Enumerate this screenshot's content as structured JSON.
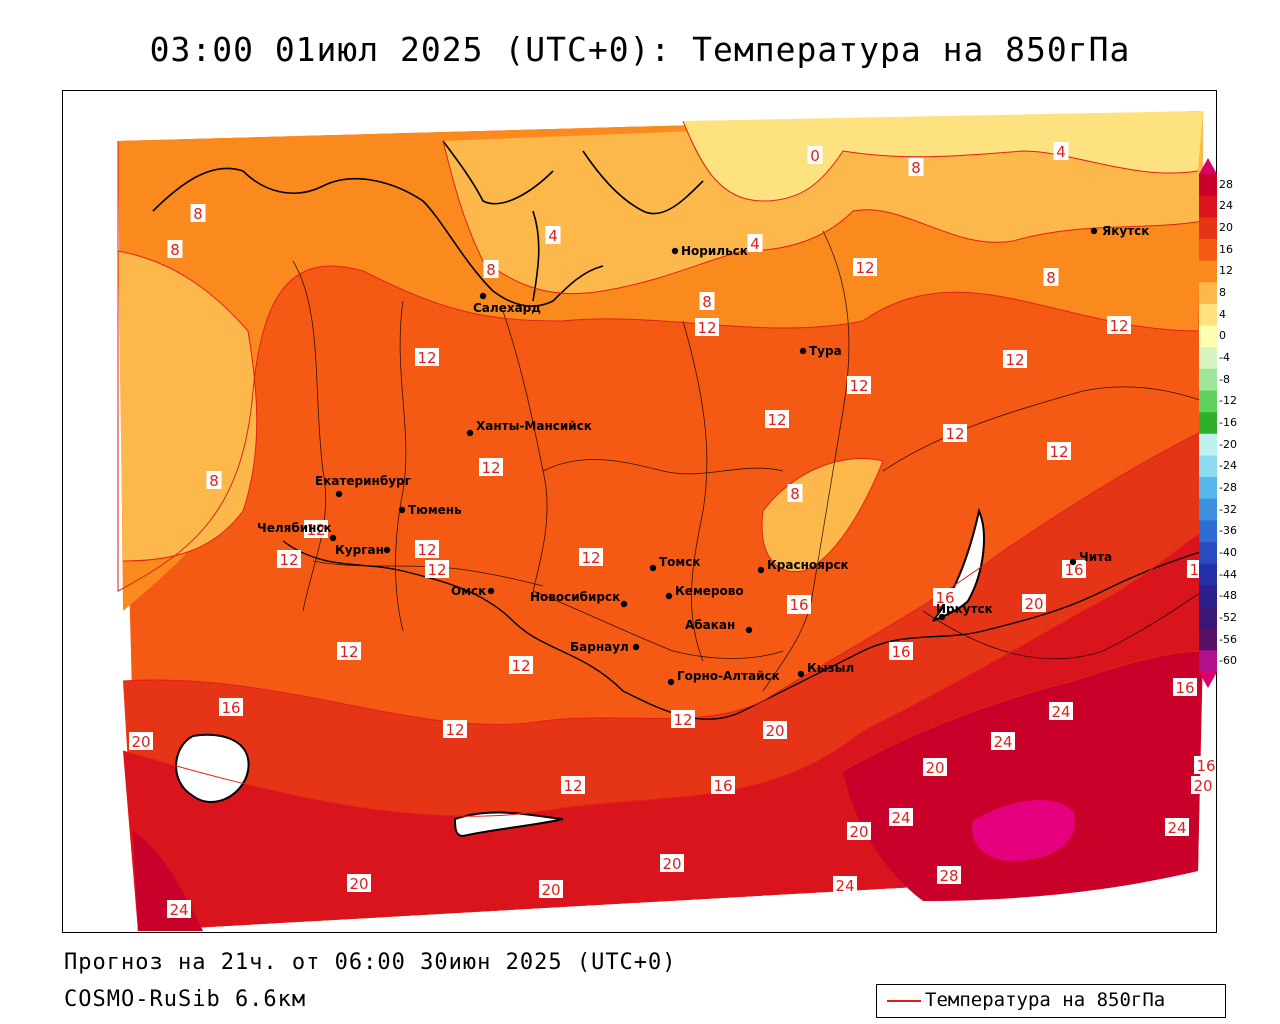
{
  "title": "03:00 01июл 2025 (UTC+0): Температура на 850гПа",
  "footer": {
    "forecast": "Прогноз на 21ч. от 06:00 30июн 2025 (UTC+0)",
    "model": "COSMO-RuSib 6.6км"
  },
  "legend": {
    "label": "Температура на 850гПа",
    "color": "#e0201a"
  },
  "colorbar": {
    "ticks": [
      "28",
      "24",
      "20",
      "16",
      "12",
      "8",
      "4",
      "0",
      "-4",
      "-8",
      "-12",
      "-16",
      "-20",
      "-24",
      "-28",
      "-32",
      "-36",
      "-40",
      "-44",
      "-48",
      "-52",
      "-56",
      "-60"
    ],
    "colors": {
      "28": "#c8002a",
      "24": "#d9141c",
      "20": "#e63417",
      "16": "#f55a14",
      "12": "#fb8a1e",
      "8": "#fdb84c",
      "4": "#fde27f",
      "0": "#ffffb4",
      "-4": "#d6f5c0",
      "-8": "#9ee69a",
      "-12": "#5fd15f",
      "-16": "#2db12d",
      "-20": "#bff0f0",
      "-24": "#8cdcf0",
      "-28": "#55b5ec",
      "-32": "#3d8fe0",
      "-36": "#2f6bd4",
      "-40": "#2a4ac0",
      "-44": "#2430a8",
      "-48": "#2b1f8e",
      "-52": "#3a1677",
      "-56": "#561066",
      "-60": "#b0108a"
    }
  },
  "cities": [
    {
      "name": "Норильск"
    },
    {
      "name": "Якутск"
    },
    {
      "name": "Салехард"
    },
    {
      "name": "Тура"
    },
    {
      "name": "Ханты-Мансийск"
    },
    {
      "name": "Екатеринбург"
    },
    {
      "name": "Тюмень"
    },
    {
      "name": "Челябинск"
    },
    {
      "name": "Курган"
    },
    {
      "name": "Омск"
    },
    {
      "name": "Томск"
    },
    {
      "name": "Красноярск"
    },
    {
      "name": "Кемерово"
    },
    {
      "name": "Новосибирск"
    },
    {
      "name": "Абакан"
    },
    {
      "name": "Барнаул"
    },
    {
      "name": "Иркутск"
    },
    {
      "name": "Чита"
    },
    {
      "name": "Кызыл"
    },
    {
      "name": "Горно-Алтайск"
    }
  ],
  "isotherm_labels": [
    "0",
    "4",
    "4",
    "4",
    "8",
    "8",
    "8",
    "8",
    "8",
    "8",
    "8",
    "8",
    "12",
    "12",
    "12",
    "12",
    "12",
    "12",
    "12",
    "12",
    "12",
    "12",
    "12",
    "12",
    "12",
    "12",
    "12",
    "12",
    "12",
    "12",
    "12",
    "12",
    "12",
    "16",
    "16",
    "16",
    "16",
    "16",
    "16",
    "16",
    "16",
    "16",
    "20",
    "20",
    "20",
    "20",
    "20",
    "20",
    "20",
    "20",
    "20",
    "24",
    "24",
    "24",
    "24",
    "24",
    "24",
    "28"
  ]
}
